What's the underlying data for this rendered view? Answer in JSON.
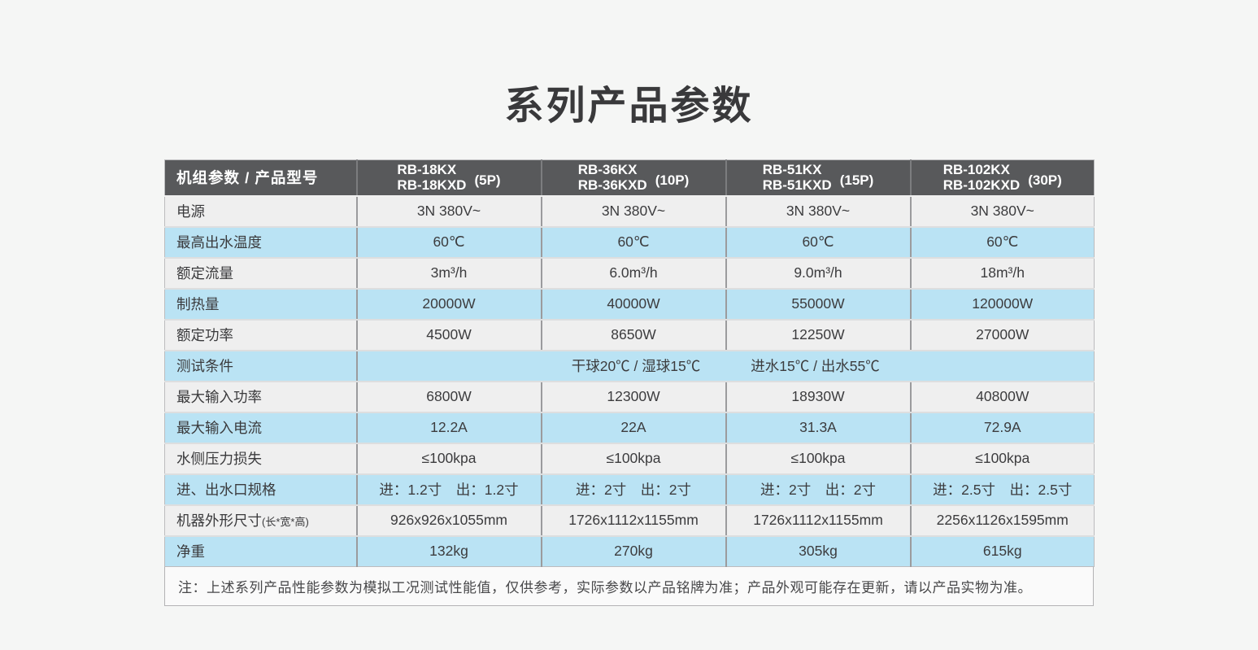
{
  "page": {
    "title": "系列产品参数"
  },
  "colors": {
    "page_background": "#f5f6f5",
    "header_background": "#58595b",
    "header_text": "#ffffff",
    "row_blue": "#bae3f4",
    "row_gray": "#efefef",
    "title_text": "#39393b",
    "vertical_border": "#9b9b9d"
  },
  "table": {
    "corner_header": "机组参数 / 产品型号",
    "columns": [
      {
        "model1": "RB-18KX",
        "model2": "RB-18KXD",
        "hp": "(5P)"
      },
      {
        "model1": "RB-36KX",
        "model2": "RB-36KXD",
        "hp": "(10P)"
      },
      {
        "model1": "RB-51KX",
        "model2": "RB-51KXD",
        "hp": "(15P)"
      },
      {
        "model1": "RB-102KX",
        "model2": "RB-102KXD",
        "hp": "(30P)"
      }
    ],
    "rows": [
      {
        "label": "电源",
        "tint": "gray",
        "values": [
          "3N 380V~",
          "3N 380V~",
          "3N 380V~",
          "3N 380V~"
        ]
      },
      {
        "label": "最高出水温度",
        "tint": "blue",
        "values": [
          "60℃",
          "60℃",
          "60℃",
          "60℃"
        ]
      },
      {
        "label": "额定流量",
        "tint": "gray",
        "values": [
          "3m³/h",
          "6.0m³/h",
          "9.0m³/h",
          "18m³/h"
        ]
      },
      {
        "label": "制热量",
        "tint": "blue",
        "values": [
          "20000W",
          "40000W",
          "55000W",
          "120000W"
        ]
      },
      {
        "label": "额定功率",
        "tint": "gray",
        "values": [
          "4500W",
          "8650W",
          "12250W",
          "27000W"
        ]
      },
      {
        "label": "测试条件",
        "tint": "blue",
        "span_values": [
          "干球20℃ / 湿球15℃",
          "进水15℃ / 出水55℃"
        ]
      },
      {
        "label": "最大输入功率",
        "tint": "gray",
        "values": [
          "6800W",
          "12300W",
          "18930W",
          "40800W"
        ]
      },
      {
        "label": "最大输入电流",
        "tint": "blue",
        "values": [
          "12.2A",
          "22A",
          "31.3A",
          "72.9A"
        ]
      },
      {
        "label": "水侧压力损失",
        "tint": "gray",
        "values": [
          "≤100kpa",
          "≤100kpa",
          "≤100kpa",
          "≤100kpa"
        ]
      },
      {
        "label": "进、出水口规格",
        "tint": "blue",
        "values": [
          "进：1.2寸　出：1.2寸",
          "进：2寸　出：2寸",
          "进：2寸　出：2寸",
          "进：2.5寸　出：2.5寸"
        ]
      },
      {
        "label": "机器外形尺寸",
        "label_suffix": "(长*宽*高)",
        "tint": "gray",
        "values": [
          "926x926x1055mm",
          "1726x1112x1155mm",
          "1726x1112x1155mm",
          "2256x1126x1595mm"
        ]
      },
      {
        "label": "净重",
        "tint": "blue",
        "values": [
          "132kg",
          "270kg",
          "305kg",
          "615kg"
        ]
      }
    ],
    "note": "注：上述系列产品性能参数为模拟工况测试性能值，仅供参考，实际参数以产品铭牌为准；产品外观可能存在更新，请以产品实物为准。"
  }
}
